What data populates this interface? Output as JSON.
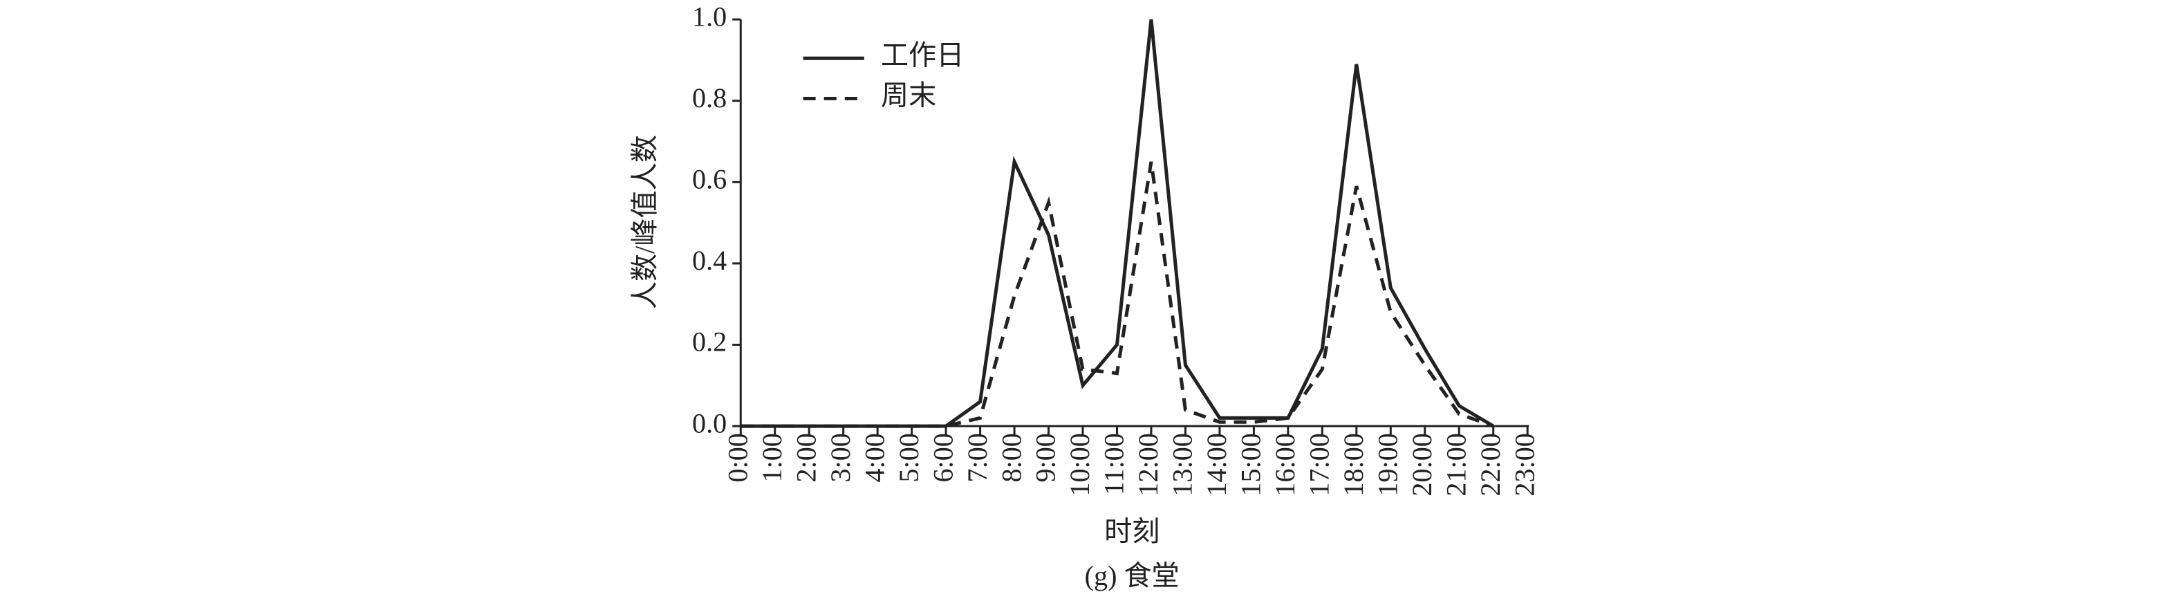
{
  "chart_data": {
    "type": "line",
    "caption": "(g) 食堂",
    "x_label": "时刻",
    "y_label": "人数/峰值人数",
    "categories": [
      "0:00",
      "1:00",
      "2:00",
      "3:00",
      "4:00",
      "5:00",
      "6:00",
      "7:00",
      "8:00",
      "9:00",
      "10:00",
      "11:00",
      "12:00",
      "13:00",
      "14:00",
      "15:00",
      "16:00",
      "17:00",
      "18:00",
      "19:00",
      "20:00",
      "21:00",
      "22:00",
      "23:00"
    ],
    "series": [
      {
        "name": "工作日",
        "color": "#222222",
        "style": "solid",
        "values": [
          0,
          0,
          0,
          0,
          0,
          0,
          0,
          0.06,
          0.65,
          0.47,
          0.1,
          0.2,
          1.0,
          0.15,
          0.02,
          0.02,
          0.02,
          0.19,
          0.89,
          0.34,
          0.19,
          0.05,
          0.0,
          null
        ]
      },
      {
        "name": "周末",
        "color": "#222222",
        "style": "dashed",
        "values": [
          0,
          0,
          0,
          0,
          0,
          0,
          0,
          0.02,
          0.32,
          0.55,
          0.14,
          0.13,
          0.65,
          0.04,
          0.01,
          0.01,
          0.02,
          0.14,
          0.59,
          0.28,
          0.15,
          0.03,
          0.0,
          null
        ]
      }
    ],
    "ylim": [
      0,
      1.0
    ],
    "yticks": [
      {
        "value": 0,
        "label": "0.0"
      },
      0.2,
      0.4,
      0.6,
      0.8,
      {
        "value": 1.0,
        "label": "1.0"
      }
    ],
    "legend": "upper-left"
  }
}
